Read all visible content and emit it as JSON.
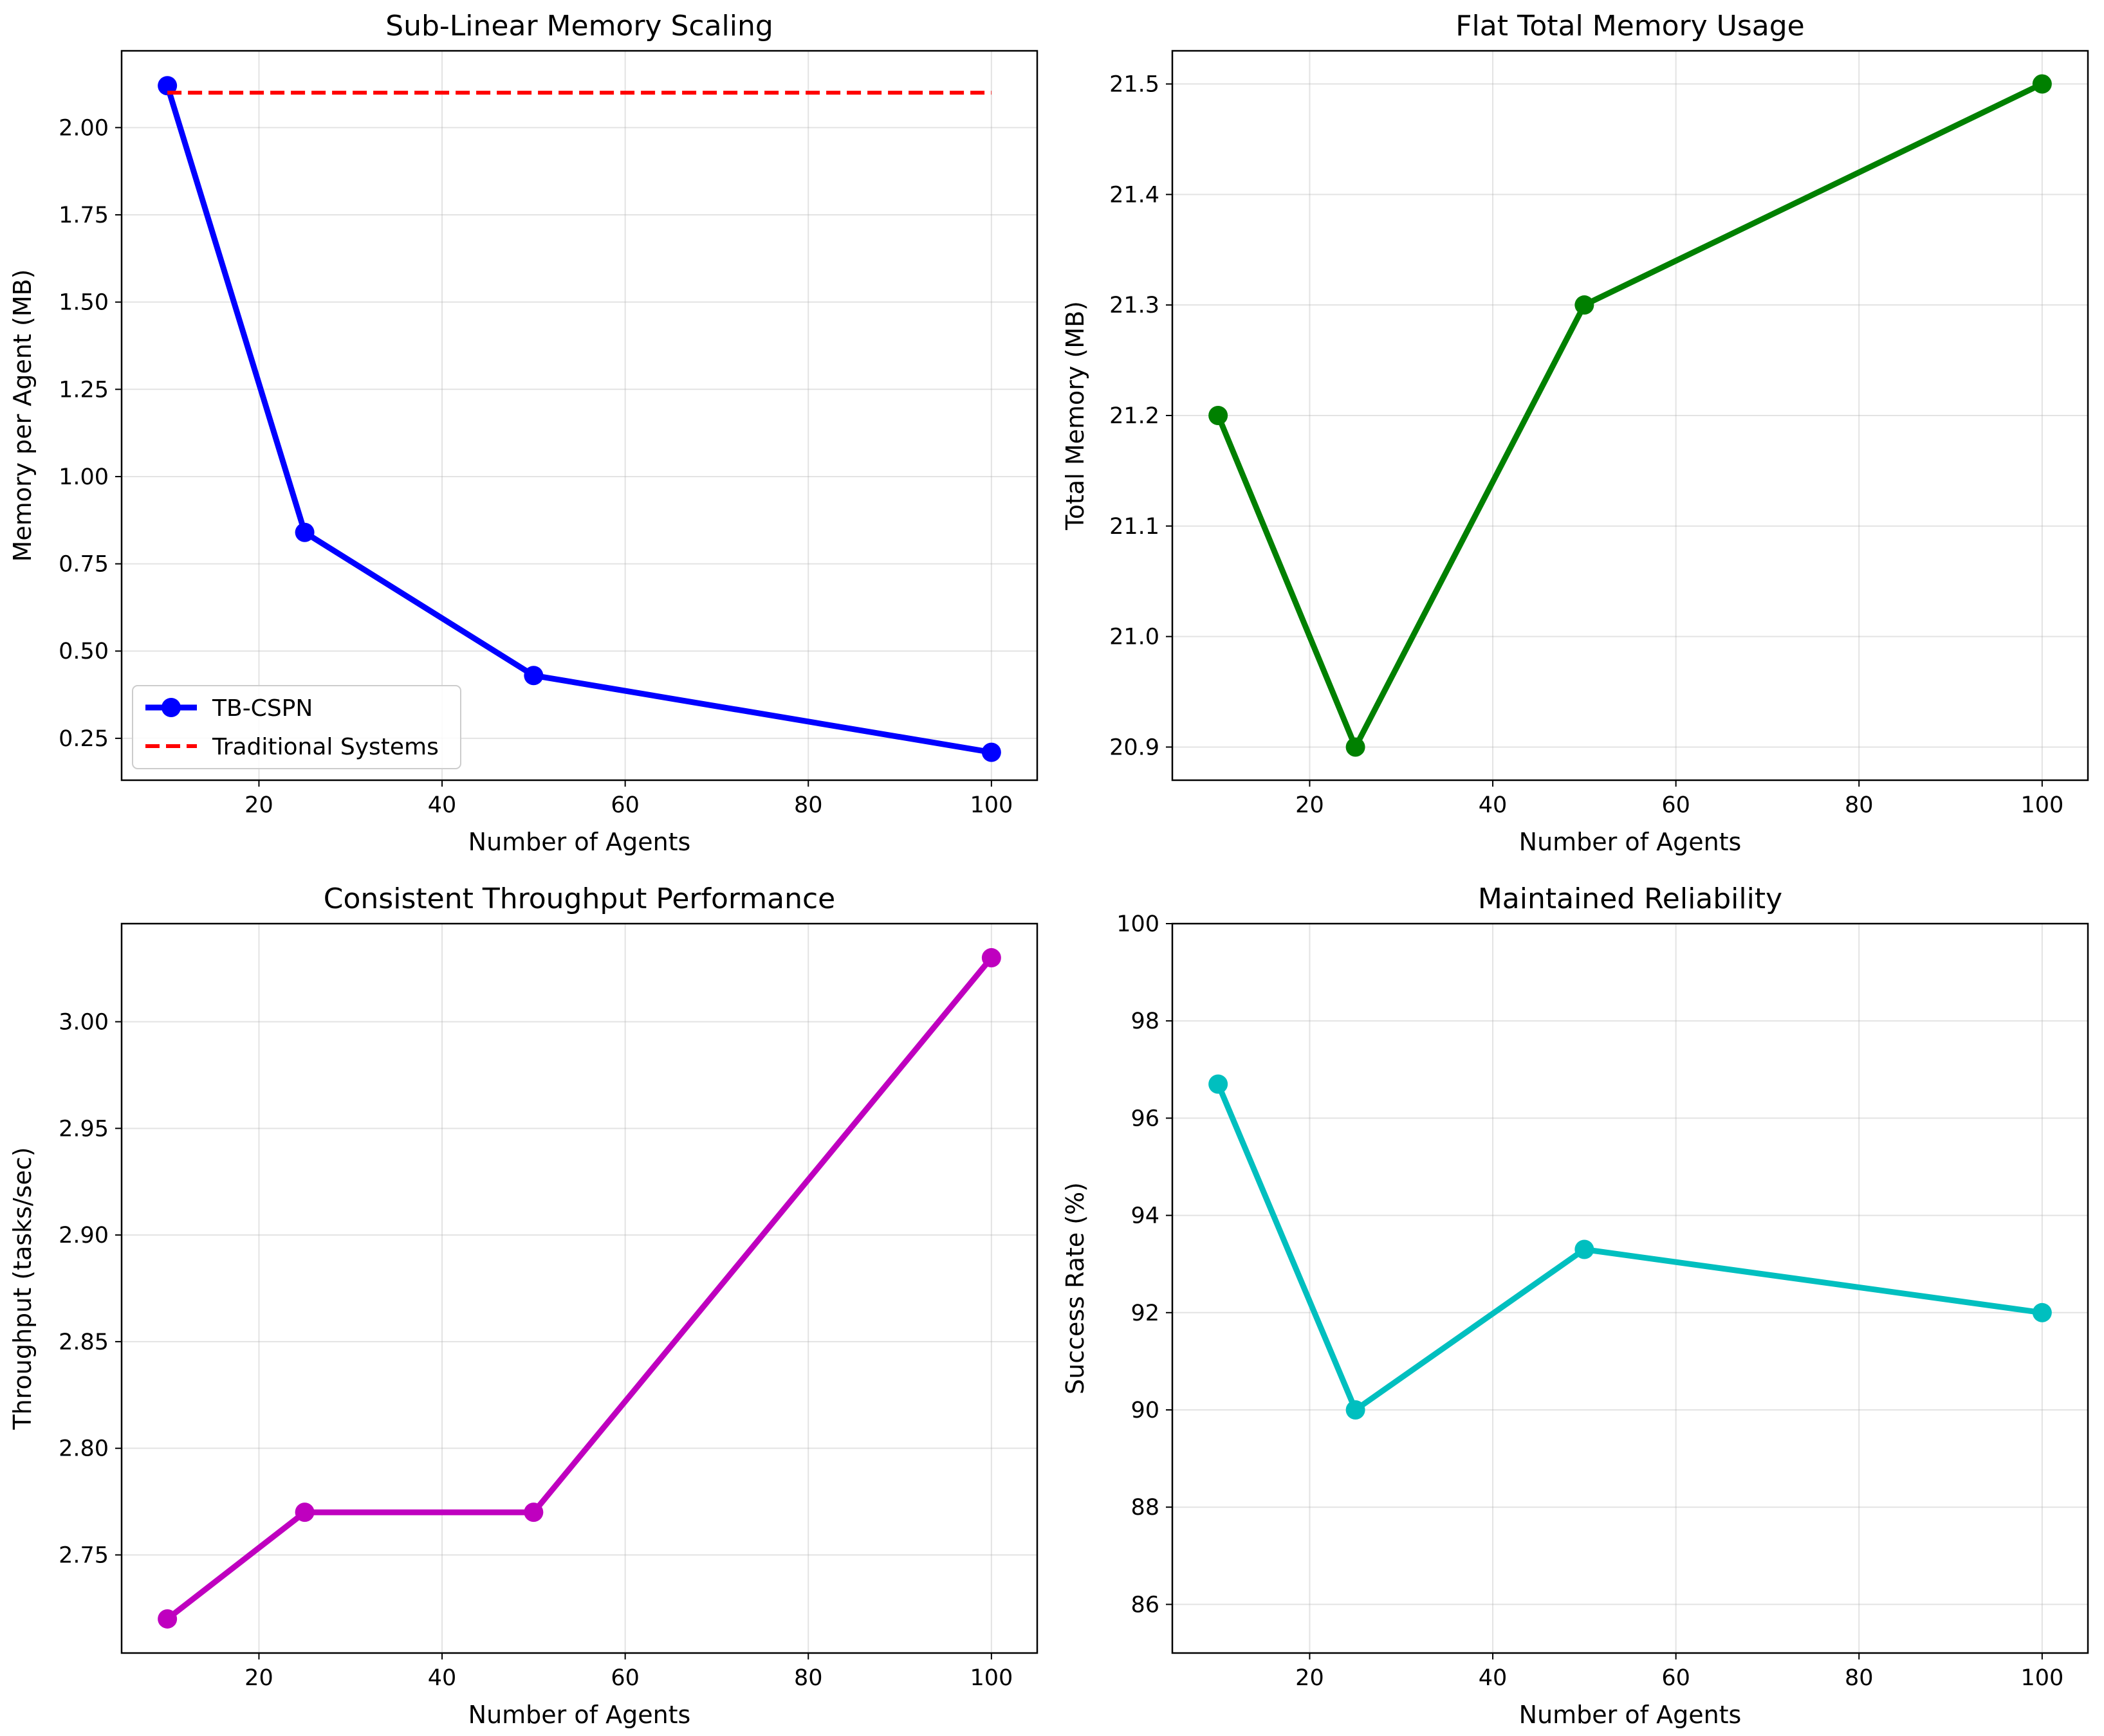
{
  "figure": {
    "colors": {
      "tb_cspn": "#0000ff",
      "traditional": "#ff0000",
      "total_memory": "#008000",
      "throughput": "#bf00bf",
      "reliability": "#00bfbf"
    }
  },
  "chart_data": [
    {
      "type": "line",
      "title": "Sub-Linear Memory Scaling",
      "xlabel": "Number of Agents",
      "ylabel": "Memory per Agent (MB)",
      "xlim": [
        5,
        105
      ],
      "ylim": [
        0.13,
        2.22
      ],
      "xticks": [
        20,
        40,
        60,
        80,
        100
      ],
      "xtick_labels": [
        "20",
        "40",
        "60",
        "80",
        "100"
      ],
      "yticks": [
        0.25,
        0.5,
        0.75,
        1.0,
        1.25,
        1.5,
        1.75,
        2.0
      ],
      "ytick_labels": [
        "0.25",
        "0.50",
        "0.75",
        "1.00",
        "1.25",
        "1.50",
        "1.75",
        "2.00"
      ],
      "grid": true,
      "legend": "lower-left",
      "series": [
        {
          "name": "TB-CSPN",
          "color": "#0000ff",
          "style": "solid",
          "marker": true,
          "x": [
            10,
            25,
            50,
            100
          ],
          "values": [
            2.12,
            0.84,
            0.43,
            0.21
          ]
        },
        {
          "name": "Traditional Systems",
          "color": "#ff0000",
          "style": "dashed",
          "marker": false,
          "x": [
            10,
            100
          ],
          "values": [
            2.1,
            2.1
          ]
        }
      ]
    },
    {
      "type": "line",
      "title": "Flat Total Memory Usage",
      "xlabel": "Number of Agents",
      "ylabel": "Total Memory (MB)",
      "xlim": [
        5,
        105
      ],
      "ylim": [
        20.87,
        21.53
      ],
      "xticks": [
        20,
        40,
        60,
        80,
        100
      ],
      "xtick_labels": [
        "20",
        "40",
        "60",
        "80",
        "100"
      ],
      "yticks": [
        20.9,
        21.0,
        21.1,
        21.2,
        21.3,
        21.4,
        21.5
      ],
      "ytick_labels": [
        "20.9",
        "21.0",
        "21.1",
        "21.2",
        "21.3",
        "21.4",
        "21.5"
      ],
      "grid": true,
      "legend": "none",
      "series": [
        {
          "name": "Total Memory",
          "color": "#008000",
          "style": "solid",
          "marker": true,
          "x": [
            10,
            25,
            50,
            100
          ],
          "values": [
            21.2,
            20.9,
            21.3,
            21.5
          ]
        }
      ]
    },
    {
      "type": "line",
      "title": "Consistent Throughput Performance",
      "xlabel": "Number of Agents",
      "ylabel": "Throughput (tasks/sec)",
      "xlim": [
        5,
        105
      ],
      "ylim": [
        2.704,
        3.046
      ],
      "xticks": [
        20,
        40,
        60,
        80,
        100
      ],
      "xtick_labels": [
        "20",
        "40",
        "60",
        "80",
        "100"
      ],
      "yticks": [
        2.75,
        2.8,
        2.85,
        2.9,
        2.95,
        3.0
      ],
      "ytick_labels": [
        "2.75",
        "2.80",
        "2.85",
        "2.90",
        "2.95",
        "3.00"
      ],
      "grid": true,
      "legend": "none",
      "series": [
        {
          "name": "Throughput",
          "color": "#bf00bf",
          "style": "solid",
          "marker": true,
          "x": [
            10,
            25,
            50,
            100
          ],
          "values": [
            2.72,
            2.77,
            2.77,
            3.03
          ]
        }
      ]
    },
    {
      "type": "line",
      "title": "Maintained Reliability",
      "xlabel": "Number of Agents",
      "ylabel": "Success Rate (%)",
      "xlim": [
        5,
        105
      ],
      "ylim": [
        85,
        100
      ],
      "xticks": [
        20,
        40,
        60,
        80,
        100
      ],
      "xtick_labels": [
        "20",
        "40",
        "60",
        "80",
        "100"
      ],
      "yticks": [
        86,
        88,
        90,
        92,
        94,
        96,
        98,
        100
      ],
      "ytick_labels": [
        "86",
        "88",
        "90",
        "92",
        "94",
        "96",
        "98",
        "100"
      ],
      "grid": true,
      "legend": "none",
      "series": [
        {
          "name": "Success Rate",
          "color": "#00bfbf",
          "style": "solid",
          "marker": true,
          "x": [
            10,
            25,
            50,
            100
          ],
          "values": [
            96.7,
            90.0,
            93.3,
            92.0
          ]
        }
      ]
    }
  ]
}
